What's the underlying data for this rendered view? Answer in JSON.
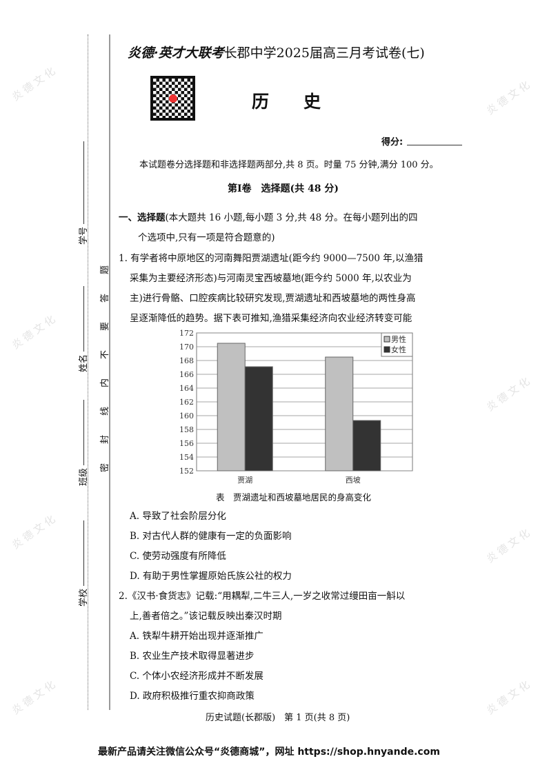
{
  "watermark": "炎德文化",
  "margin": {
    "fields": [
      "学号",
      "姓名",
      "班级",
      "学校"
    ],
    "seal_text": "密封线内不要答题"
  },
  "header": {
    "brand": "炎德·英才大联考",
    "title": "长郡中学2025届高三月考试卷(七)",
    "subject": "历　　史",
    "score_label": "得分:"
  },
  "intro": "本试题卷分选择题和非选择题两部分,共 8 页。时量 75 分钟,满分 100 分。",
  "section": "第Ⅰ卷　选择题(共 48 分)",
  "part_heading": {
    "label": "一、选择题",
    "text1": "(本大题共 16 小题,每小题 3 分,共 48 分。在每小题列出的四",
    "text2": "个选项中,只有一项是符合题意的)"
  },
  "q1": {
    "lines": [
      "1. 有学者将中原地区的河南舞阳贾湖遗址(距今约 9000—7500 年,以渔猎",
      "采集为主要经济形态)与河南灵宝西坡墓地(距今约 5000 年,以农业为",
      "主)进行骨骼、口腔疾病比较研究发现,贾湖遗址和西坡墓地的两性身高",
      "呈逐渐降低的趋势。据下表可推知,渔猎采集经济向农业经济转变可能"
    ],
    "options": [
      "A. 导致了社会阶层分化",
      "B. 对古代人群的健康有一定的负面影响",
      "C. 使劳动强度有所降低",
      "D. 有助于男性掌握原始氏族公社的权力"
    ]
  },
  "q2": {
    "lines": [
      "2.《汉书·食货志》记载:“用耦犁,二牛三人,一岁之收常过缦田亩一斛以",
      "上,善者倍之。”该记载反映出秦汉时期"
    ],
    "options": [
      "A. 铁犁牛耕开始出现并逐渐推广",
      "B. 农业生产技术取得显著进步",
      "C. 个体小农经济形成并不断发展",
      "D. 政府积极推行重农抑商政策"
    ]
  },
  "chart_data": {
    "type": "bar",
    "categories": [
      "贾湖",
      "西坡"
    ],
    "series": [
      {
        "name": "男性",
        "values": [
          170.5,
          168.5
        ],
        "color": "#c0c0c0"
      },
      {
        "name": "女性",
        "values": [
          167.1,
          159.3
        ],
        "color": "#333333"
      }
    ],
    "ylim": [
      152,
      172
    ],
    "yticks": [
      "152",
      "154",
      "156",
      "158",
      "160",
      "162",
      "164",
      "166",
      "168",
      "170",
      "172"
    ],
    "grid": true,
    "legend": "top-right",
    "caption": "表　贾湖遗址和西坡墓地居民的身高变化"
  },
  "footer": "历史试题(长郡版)　第 1 页(共 8 页)",
  "banner": "最新产品请关注微信公众号“炎德商城”，网址 https://shop.hnyande.com"
}
